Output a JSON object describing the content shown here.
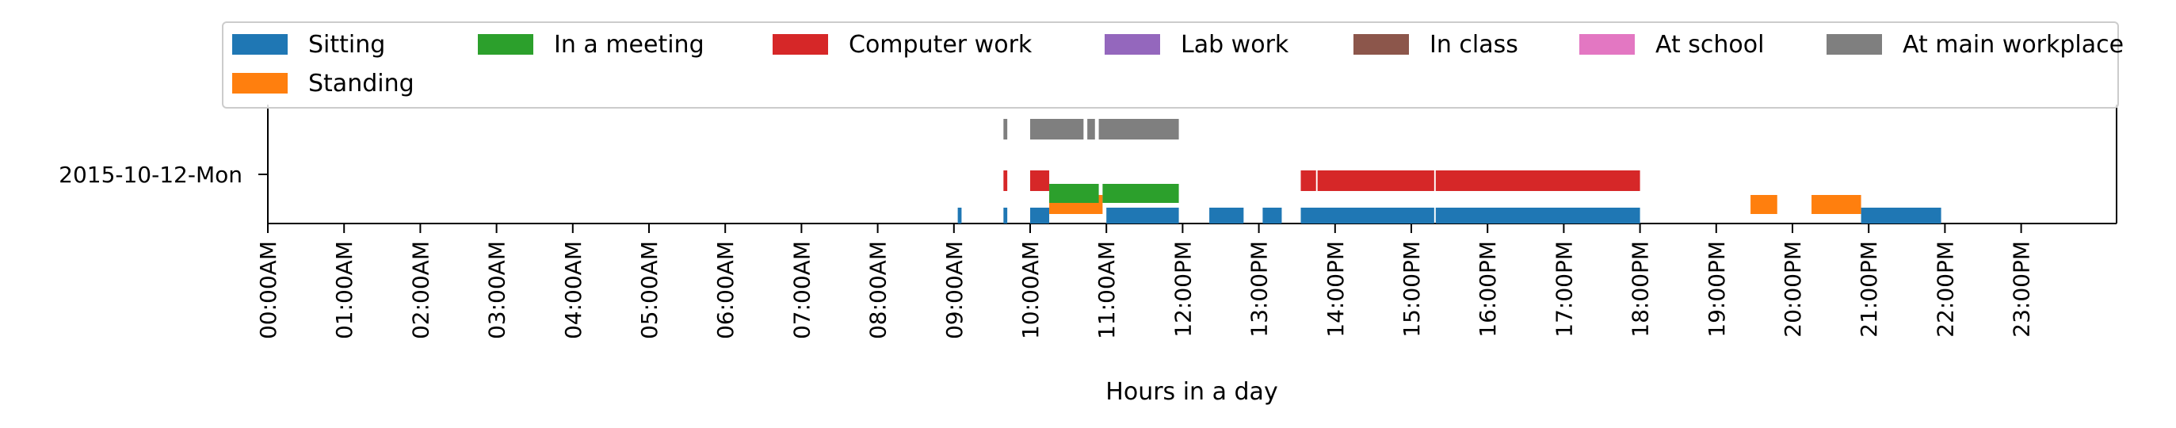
{
  "chart_data": {
    "type": "timeline",
    "title": "",
    "xlabel": "Hours in a day",
    "ylabel": "",
    "xlim": [
      0,
      24
    ],
    "x_unit": "hour of day",
    "y_category": "2015-10-12-Mon",
    "x_tick_labels": [
      "00:00AM",
      "01:00AM",
      "02:00AM",
      "03:00AM",
      "04:00AM",
      "05:00AM",
      "06:00AM",
      "07:00AM",
      "08:00AM",
      "09:00AM",
      "10:00AM",
      "11:00AM",
      "12:00PM",
      "13:00PM",
      "14:00PM",
      "15:00PM",
      "16:00PM",
      "17:00PM",
      "18:00PM",
      "19:00PM",
      "20:00PM",
      "21:00PM",
      "22:00PM",
      "23:00PM"
    ],
    "legend_position": "top",
    "grid": false,
    "series": [
      {
        "name": "Sitting",
        "color": "#1f77b4",
        "intervals": [
          [
            9.05,
            9.1
          ],
          [
            9.65,
            9.7
          ],
          [
            10.0,
            10.25
          ],
          [
            11.0,
            11.95
          ],
          [
            12.35,
            12.8
          ],
          [
            13.05,
            13.3
          ],
          [
            13.55,
            15.3
          ],
          [
            15.32,
            18.0
          ],
          [
            20.9,
            21.95
          ]
        ]
      },
      {
        "name": "Standing",
        "color": "#ff7f0e",
        "intervals": [
          [
            10.25,
            10.95
          ],
          [
            19.45,
            19.8
          ],
          [
            20.25,
            20.9
          ]
        ]
      },
      {
        "name": "In a meeting",
        "color": "#2ca02c",
        "intervals": [
          [
            10.25,
            10.9
          ],
          [
            10.95,
            11.95
          ]
        ]
      },
      {
        "name": "Computer work",
        "color": "#d62728",
        "intervals": [
          [
            9.65,
            9.7
          ],
          [
            10.0,
            10.25
          ],
          [
            13.55,
            13.75
          ],
          [
            13.77,
            15.3
          ],
          [
            15.32,
            18.0
          ]
        ]
      },
      {
        "name": "Lab work",
        "color": "#9467bd",
        "intervals": []
      },
      {
        "name": "In class",
        "color": "#8c564b",
        "intervals": []
      },
      {
        "name": "At school",
        "color": "#e377c2",
        "intervals": []
      },
      {
        "name": "At main workplace",
        "color": "#7f7f7f",
        "intervals": [
          [
            9.65,
            9.7
          ],
          [
            10.0,
            10.7
          ],
          [
            10.75,
            10.85
          ],
          [
            10.9,
            11.95
          ]
        ]
      }
    ]
  }
}
